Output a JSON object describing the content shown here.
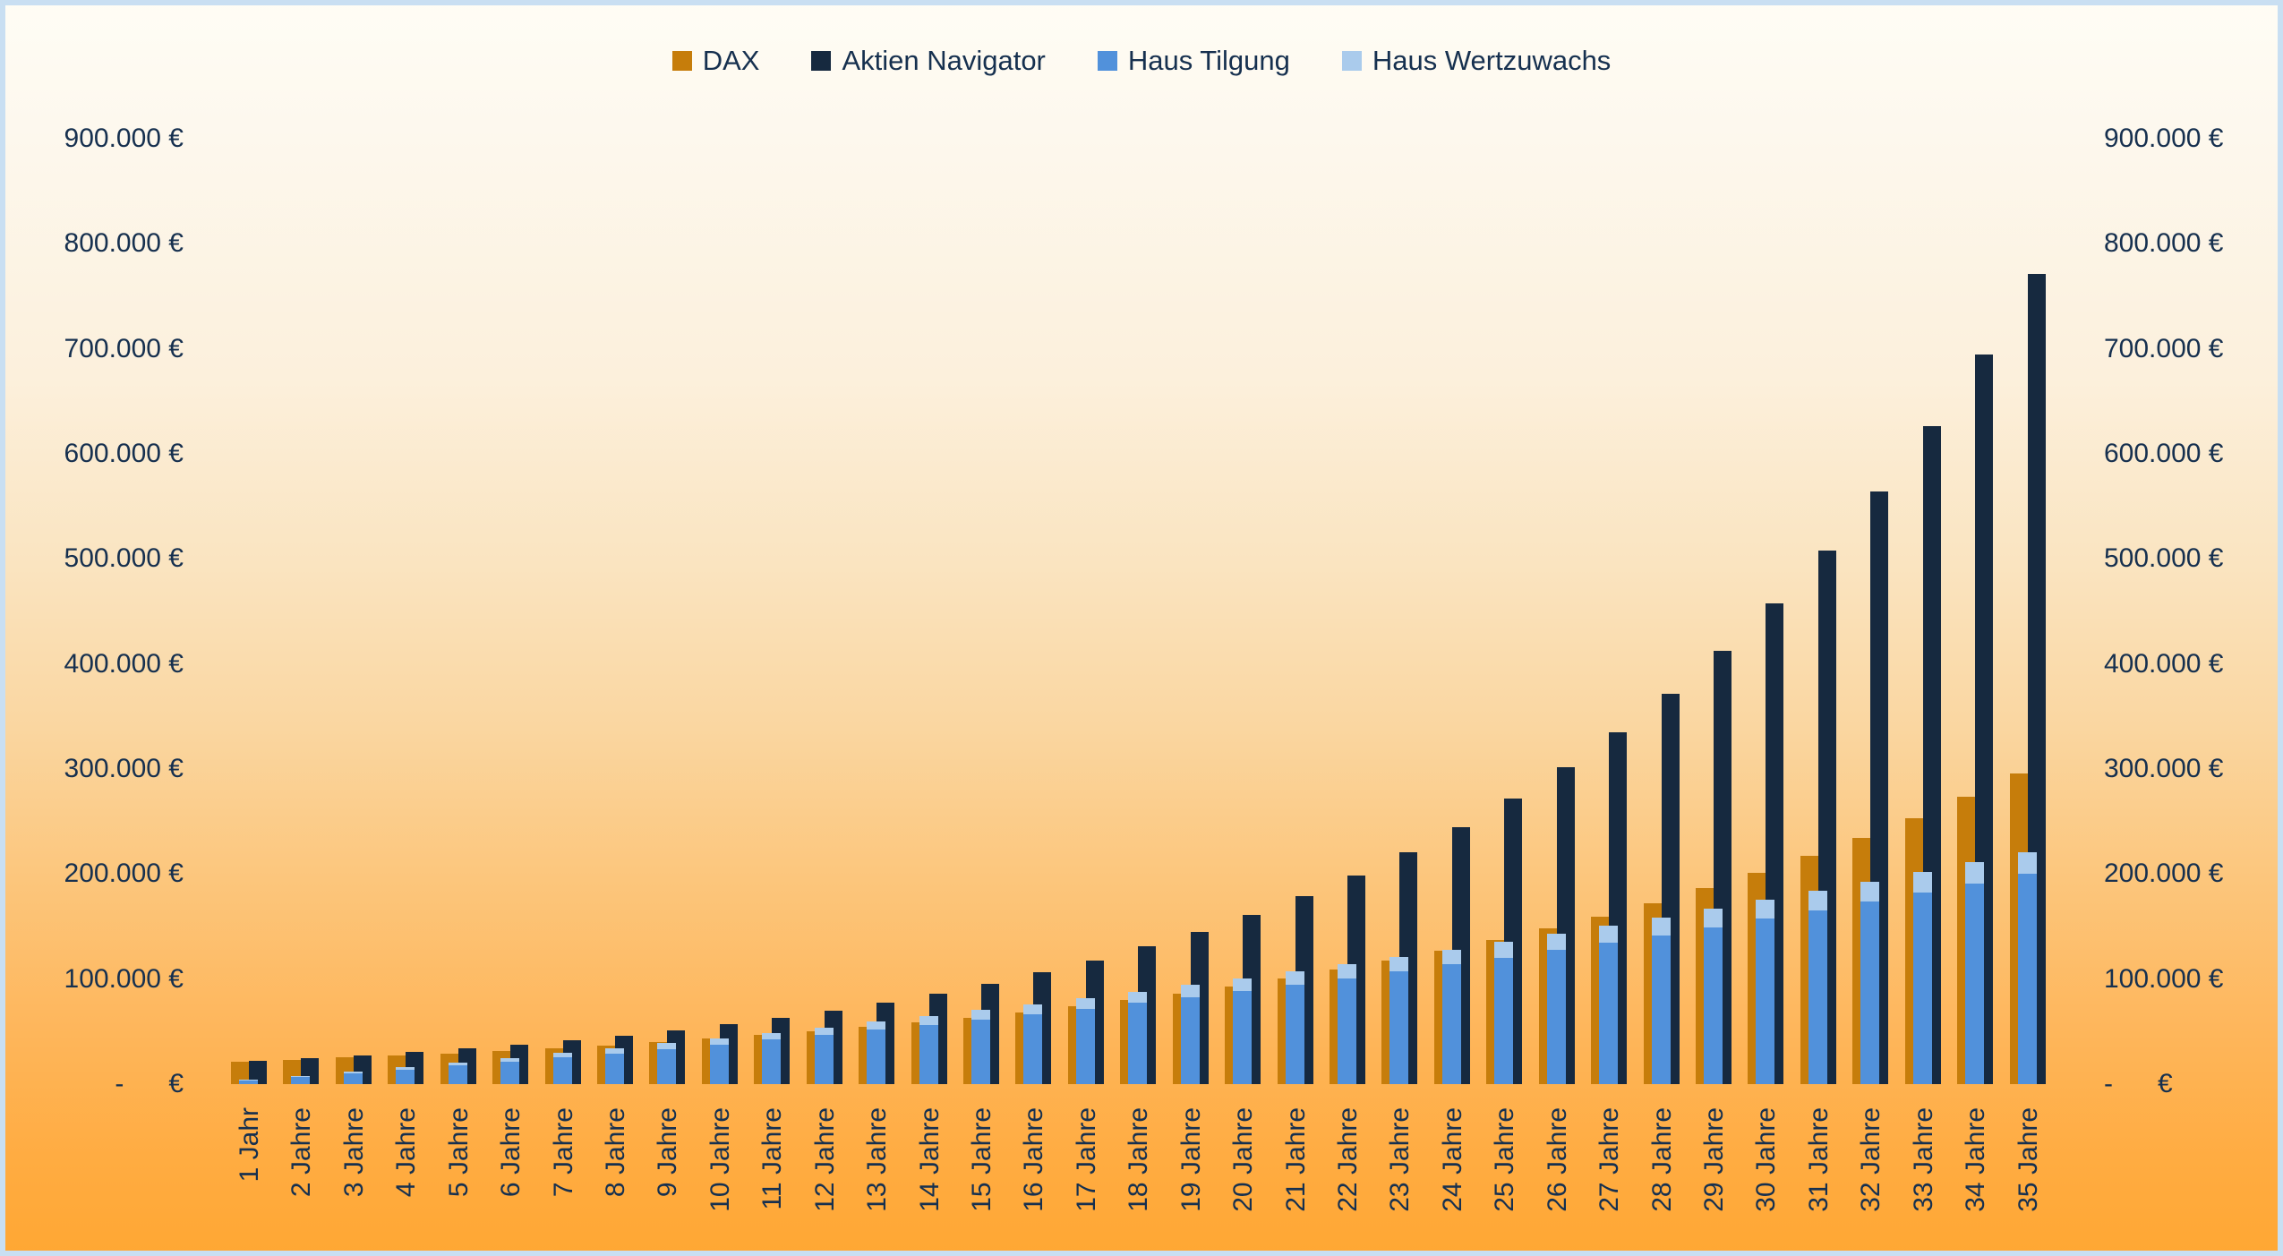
{
  "chart_data": {
    "type": "bar",
    "title": "",
    "legend_position": "top",
    "grid": false,
    "categories": [
      "1 Jahr",
      "2 Jahre",
      "3 Jahre",
      "4 Jahre",
      "5 Jahre",
      "6 Jahre",
      "7 Jahre",
      "8 Jahre",
      "9 Jahre",
      "10 Jahre",
      "11 Jahre",
      "12 Jahre",
      "13 Jahre",
      "14 Jahre",
      "15 Jahre",
      "16 Jahre",
      "17 Jahre",
      "18 Jahre",
      "19 Jahre",
      "20 Jahre",
      "21 Jahre",
      "22 Jahre",
      "23 Jahre",
      "24 Jahre",
      "25 Jahre",
      "26 Jahre",
      "27 Jahre",
      "28 Jahre",
      "29 Jahre",
      "30 Jahre",
      "31 Jahre",
      "32 Jahre",
      "33 Jahre",
      "34 Jahre",
      "35 Jahre"
    ],
    "series": [
      {
        "name": "DAX",
        "color": "#C67D0B",
        "stack": null,
        "values": [
          21600,
          23300,
          25200,
          27200,
          29400,
          31700,
          34300,
          37000,
          40000,
          43200,
          46600,
          50400,
          54400,
          58700,
          63400,
          68500,
          74000,
          79900,
          86300,
          93200,
          100700,
          108700,
          117400,
          126800,
          137000,
          147900,
          159800,
          172500,
          186300,
          201300,
          217400,
          234700,
          253500,
          273800,
          295700
        ]
      },
      {
        "name": "Aktien Navigator",
        "color": "#16293F",
        "stack": null,
        "values": [
          22200,
          24600,
          27400,
          30400,
          33700,
          37400,
          41500,
          46100,
          51200,
          56800,
          63000,
          70000,
          77700,
          86200,
          95700,
          106200,
          117900,
          130900,
          145300,
          161200,
          179000,
          198700,
          220500,
          244800,
          271700,
          301600,
          334800,
          371600,
          412500,
          457800,
          508200,
          564100,
          626200,
          695000,
          771500
        ]
      },
      {
        "name": "Haus Tilgung",
        "color": "#5191DB",
        "stack": "haus",
        "values": [
          3300,
          6700,
          10200,
          13800,
          17600,
          21400,
          25300,
          29400,
          33600,
          37900,
          42300,
          46900,
          51600,
          56500,
          61500,
          66600,
          71900,
          77400,
          83000,
          88800,
          94800,
          101000,
          107300,
          113800,
          120500,
          127500,
          134600,
          141900,
          149500,
          157300,
          165300,
          173600,
          182100,
          190900,
          199900
        ]
      },
      {
        "name": "Haus Wertzuwachs",
        "color": "#AACBEC",
        "stack": "haus",
        "values": [
          600,
          1200,
          1800,
          2400,
          3000,
          3600,
          4200,
          4800,
          5400,
          6000,
          6600,
          7200,
          7800,
          8400,
          9000,
          9600,
          10200,
          10800,
          11400,
          12000,
          12600,
          13200,
          13800,
          14400,
          15000,
          15600,
          16200,
          16800,
          17400,
          18000,
          18600,
          19200,
          19800,
          20400,
          21000
        ]
      }
    ],
    "y_axis": {
      "min": 0,
      "max": 900000,
      "step": 100000,
      "sides": [
        "left",
        "right"
      ],
      "tick_labels": [
        "-      €",
        "100.000 €",
        "200.000 €",
        "300.000 €",
        "400.000 €",
        "500.000 €",
        "600.000 €",
        "700.000 €",
        "800.000 €",
        "900.000 €"
      ]
    },
    "x_axis": {
      "label_rotation": -90
    }
  },
  "style": {
    "text_color": "#16304F",
    "border_color": "#C9DFF2",
    "background_top": "#FFFDF5",
    "background_bottom": "#FFA733"
  }
}
